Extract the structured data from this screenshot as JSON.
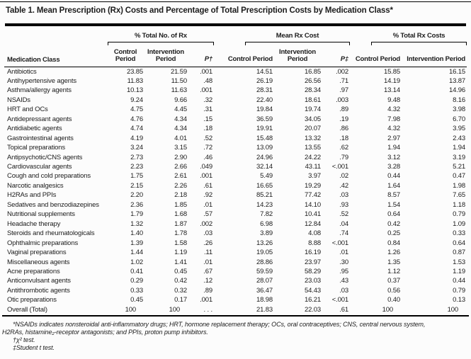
{
  "title": "Table 1. Mean Prescription (Rx) Costs and Percentage of Total Prescription Costs by Medication Class*",
  "table": {
    "row_header": "Medication Class",
    "groups": [
      {
        "label": "% Total No. of Rx",
        "sub": [
          "Control Period",
          "Intervention Period",
          "P†"
        ]
      },
      {
        "label": "Mean Rx Cost",
        "sub": [
          "Control Period",
          "Intervention Period",
          "P‡"
        ]
      },
      {
        "label": "% Total Rx Costs",
        "sub": [
          "Control Period",
          "Intervention Period"
        ]
      }
    ],
    "rows": [
      {
        "label": "Antibiotics",
        "values": [
          "23.85",
          "21.59",
          ".001",
          "14.51",
          "16.85",
          ".002",
          "15.85",
          "16.15"
        ]
      },
      {
        "label": "Antihypertensive agents",
        "values": [
          "11.83",
          "11.50",
          ".48",
          "26.19",
          "26.56",
          ".71",
          "14.19",
          "13.87"
        ]
      },
      {
        "label": "Asthma/allergy agents",
        "values": [
          "10.13",
          "11.63",
          ".001",
          "28.31",
          "28.34",
          ".97",
          "13.14",
          "14.96"
        ]
      },
      {
        "label": "NSAIDs",
        "values": [
          "9.24",
          "9.66",
          ".32",
          "22.40",
          "18.61",
          ".003",
          "9.48",
          "8.16"
        ]
      },
      {
        "label": "HRT and OCs",
        "values": [
          "4.75",
          "4.45",
          ".31",
          "19.84",
          "19.74",
          ".89",
          "4.32",
          "3.98"
        ]
      },
      {
        "label": "Antidepressant agents",
        "values": [
          "4.76",
          "4.34",
          ".15",
          "36.59",
          "34.05",
          ".19",
          "7.98",
          "6.70"
        ]
      },
      {
        "label": "Antidiabetic agents",
        "values": [
          "4.74",
          "4.34",
          ".18",
          "19.91",
          "20.07",
          ".86",
          "4.32",
          "3.95"
        ]
      },
      {
        "label": "Gastrointestinal agents",
        "values": [
          "4.19",
          "4.01",
          ".52",
          "15.48",
          "13.32",
          ".18",
          "2.97",
          "2.43"
        ]
      },
      {
        "label": "Topical preparations",
        "values": [
          "3.24",
          "3.15",
          ".72",
          "13.09",
          "13.55",
          ".62",
          "1.94",
          "1.94"
        ]
      },
      {
        "label": "Antipsychotic/CNS agents",
        "values": [
          "2.73",
          "2.90",
          ".46",
          "24.96",
          "24.22",
          ".79",
          "3.12",
          "3.19"
        ]
      },
      {
        "label": "Cardiovascular agents",
        "values": [
          "2.23",
          "2.66",
          ".049",
          "32.14",
          "43.11",
          "<.001",
          "3.28",
          "5.21"
        ]
      },
      {
        "label": "Cough and cold preparations",
        "values": [
          "1.75",
          "2.61",
          ".001",
          "5.49",
          "3.97",
          ".02",
          "0.44",
          "0.47"
        ]
      },
      {
        "label": "Narcotic analgesics",
        "values": [
          "2.15",
          "2.26",
          ".61",
          "16.65",
          "19.29",
          ".42",
          "1.64",
          "1.98"
        ]
      },
      {
        "label": "H2RAs and PPIs",
        "values": [
          "2.20",
          "2.18",
          ".92",
          "85.21",
          "77.42",
          ".03",
          "8.57",
          "7.65"
        ]
      },
      {
        "label": "Sedatives and benzodiazepines",
        "values": [
          "2.36",
          "1.85",
          ".01",
          "14.23",
          "14.10",
          ".93",
          "1.54",
          "1.18"
        ]
      },
      {
        "label": "Nutritional supplements",
        "values": [
          "1.79",
          "1.68",
          ".57",
          "7.82",
          "10.41",
          ".52",
          "0.64",
          "0.79"
        ]
      },
      {
        "label": "Headache therapy",
        "values": [
          "1.32",
          "1.87",
          ".002",
          "6.98",
          "12.84",
          ".04",
          "0.42",
          "1.09"
        ]
      },
      {
        "label": "Steroids and rheumatologicals",
        "values": [
          "1.40",
          "1.78",
          ".03",
          "3.89",
          "4.08",
          ".74",
          "0.25",
          "0.33"
        ]
      },
      {
        "label": "Ophthalmic preparations",
        "values": [
          "1.39",
          "1.58",
          ".26",
          "13.26",
          "8.88",
          "<.001",
          "0.84",
          "0.64"
        ]
      },
      {
        "label": "Vaginal preparations",
        "values": [
          "1.44",
          "1.19",
          ".11",
          "19.05",
          "16.19",
          ".01",
          "1.26",
          "0.87"
        ]
      },
      {
        "label": "Miscellaneous agents",
        "values": [
          "1.02",
          "1.41",
          ".01",
          "28.86",
          "23.97",
          ".30",
          "1.35",
          "1.53"
        ]
      },
      {
        "label": "Acne preparations",
        "values": [
          "0.41",
          "0.45",
          ".67",
          "59.59",
          "58.29",
          ".95",
          "1.12",
          "1.19"
        ]
      },
      {
        "label": "Anticonvulsant agents",
        "values": [
          "0.29",
          "0.42",
          ".12",
          "28.07",
          "23.03",
          ".43",
          "0.37",
          "0.44"
        ]
      },
      {
        "label": "Antithrombotic agents",
        "values": [
          "0.33",
          "0.32",
          ".89",
          "36.47",
          "54.43",
          ".03",
          "0.56",
          "0.79"
        ]
      },
      {
        "label": "Otic preparations",
        "values": [
          "0.45",
          "0.17",
          ".001",
          "18.98",
          "16.21",
          "<.001",
          "0.40",
          "0.13"
        ]
      },
      {
        "label": "Overall (Total)",
        "values": [
          "100",
          "100",
          ". . .",
          "21.83",
          "22.03",
          ".61",
          "100",
          "100"
        ]
      }
    ]
  },
  "footnotes": [
    {
      "text": "*NSAIDs indicates nonsteroidal anti-inflammatory drugs; HRT, hormone replacement therapy; OCs, oral contraceptives; CNS, central nervous system,",
      "indent": true
    },
    {
      "text": "H2RAs, histamine₂-receptor antagonists; and PPIs, proton pump inhibitors.",
      "indent": false
    },
    {
      "text": "†χ² test.",
      "indent": true
    },
    {
      "text": "‡Student t test.",
      "indent": true
    }
  ],
  "colors": {
    "text": "#1c1c1c",
    "rule": "#000000",
    "background": "#fcfcfc"
  }
}
